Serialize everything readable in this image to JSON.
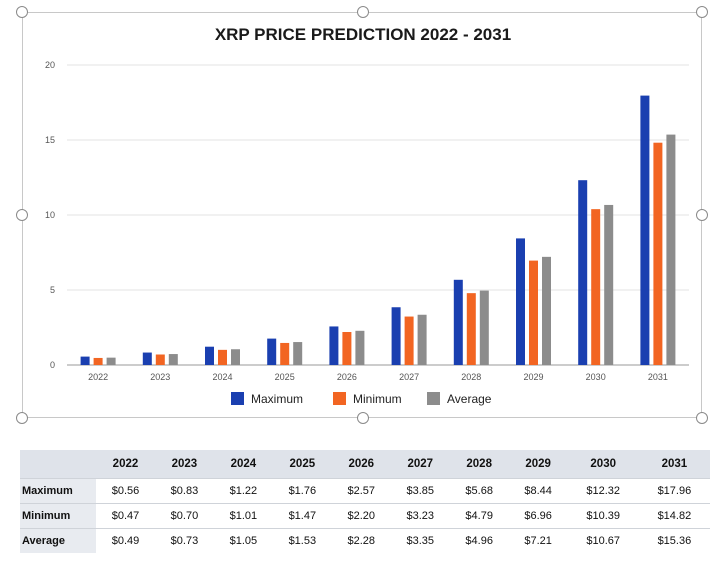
{
  "chart_data": {
    "type": "bar",
    "title": "XRP PRICE PREDICTION 2022 - 2031",
    "categories": [
      "2022",
      "2023",
      "2024",
      "2025",
      "2026",
      "2027",
      "2028",
      "2029",
      "2030",
      "2031"
    ],
    "series": [
      {
        "name": "Maximum",
        "values": [
          0.56,
          0.83,
          1.22,
          1.76,
          2.57,
          3.85,
          5.68,
          8.44,
          12.32,
          17.96
        ],
        "color": "#1a3fb0"
      },
      {
        "name": "Minimum",
        "values": [
          0.47,
          0.7,
          1.01,
          1.47,
          2.2,
          3.23,
          4.79,
          6.96,
          10.39,
          14.82
        ],
        "color": "#f26522"
      },
      {
        "name": "Average",
        "values": [
          0.49,
          0.73,
          1.05,
          1.53,
          2.28,
          3.35,
          4.96,
          7.21,
          10.67,
          15.36
        ],
        "color": "#8c8c8c"
      }
    ],
    "yticks": [
      "0",
      "5",
      "10",
      "15",
      "20"
    ],
    "ylim": [
      0,
      20
    ],
    "grid": true,
    "legend": "bottom"
  },
  "table": {
    "headers": [
      "2022",
      "2023",
      "2024",
      "2025",
      "2026",
      "2027",
      "2028",
      "2029",
      "2030",
      "2031"
    ],
    "rows": [
      {
        "label": "Maximum",
        "cells": [
          "$0.56",
          "$0.83",
          "$1.22",
          "$1.76",
          "$2.57",
          "$3.85",
          "$5.68",
          "$8.44",
          "$12.32",
          "$17.96"
        ]
      },
      {
        "label": "Minimum",
        "cells": [
          "$0.47",
          "$0.70",
          "$1.01",
          "$1.47",
          "$2.20",
          "$3.23",
          "$4.79",
          "$6.96",
          "$10.39",
          "$14.82"
        ]
      },
      {
        "label": "Average",
        "cells": [
          "$0.49",
          "$0.73",
          "$1.05",
          "$1.53",
          "$2.28",
          "$3.35",
          "$4.96",
          "$7.21",
          "$10.67",
          "$15.36"
        ]
      }
    ]
  }
}
